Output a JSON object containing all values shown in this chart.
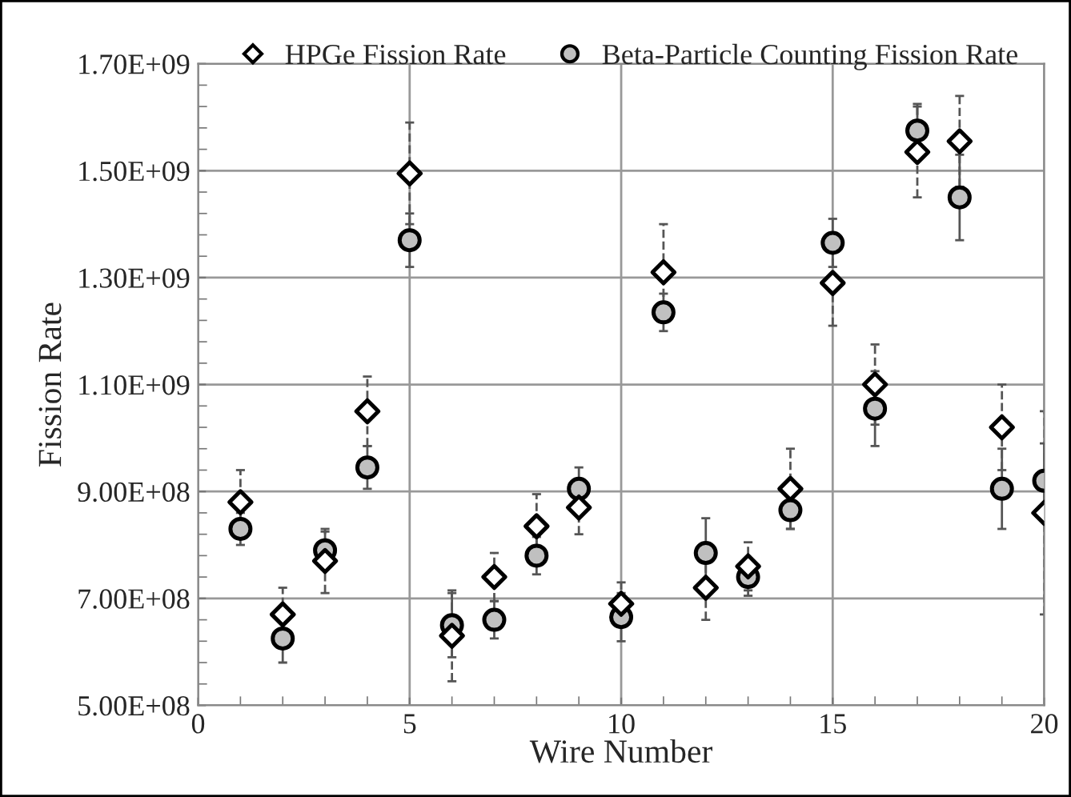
{
  "chart_data": {
    "type": "scatter",
    "xlabel": "Wire Number",
    "ylabel": "Fission Rate",
    "x": [
      1,
      2,
      3,
      4,
      5,
      6,
      7,
      8,
      9,
      10,
      11,
      12,
      13,
      14,
      15,
      16,
      17,
      18,
      19,
      20
    ],
    "series": [
      {
        "name": "HPGe Fission Rate",
        "color": "#ffffff",
        "marker": "diamond",
        "values": [
          880000000,
          670000000,
          770000000,
          1050000000,
          1495000000,
          630000000,
          740000000,
          835000000,
          870000000,
          690000000,
          1310000000,
          720000000,
          760000000,
          905000000,
          1290000000,
          1100000000,
          1535000000,
          1555000000,
          1020000000,
          860000000
        ],
        "errors": [
          60000000,
          50000000,
          60000000,
          65000000,
          95000000,
          85000000,
          45000000,
          60000000,
          50000000,
          40000000,
          90000000,
          60000000,
          45000000,
          75000000,
          80000000,
          75000000,
          85000000,
          85000000,
          80000000,
          190000000
        ]
      },
      {
        "name": "Beta-Particle Counting Fission Rate",
        "color": "#c0c0c0",
        "marker": "circle",
        "values": [
          830000000,
          625000000,
          790000000,
          945000000,
          1370000000,
          650000000,
          660000000,
          780000000,
          905000000,
          665000000,
          1235000000,
          785000000,
          740000000,
          865000000,
          1365000000,
          1055000000,
          1575000000,
          1450000000,
          905000000,
          920000000
        ],
        "errors": [
          30000000,
          45000000,
          35000000,
          40000000,
          50000000,
          60000000,
          35000000,
          35000000,
          40000000,
          45000000,
          35000000,
          65000000,
          35000000,
          35000000,
          45000000,
          70000000,
          50000000,
          80000000,
          75000000,
          70000000
        ]
      }
    ],
    "xlim": [
      0,
      20
    ],
    "xticks": [
      0,
      5,
      10,
      15,
      20
    ],
    "ylim": [
      500000000,
      1700000000
    ],
    "yticks": [
      {
        "value": 500000000,
        "label": "5.00E+08"
      },
      {
        "value": 700000000,
        "label": "7.00E+08"
      },
      {
        "value": 900000000,
        "label": "9.00E+08"
      },
      {
        "value": 1100000000,
        "label": "1.10E+09"
      },
      {
        "value": 1300000000,
        "label": "1.30E+09"
      },
      {
        "value": 1500000000,
        "label": "1.50E+09"
      },
      {
        "value": 1700000000,
        "label": "1.70E+09"
      }
    ],
    "grid": true,
    "legend": "top"
  }
}
